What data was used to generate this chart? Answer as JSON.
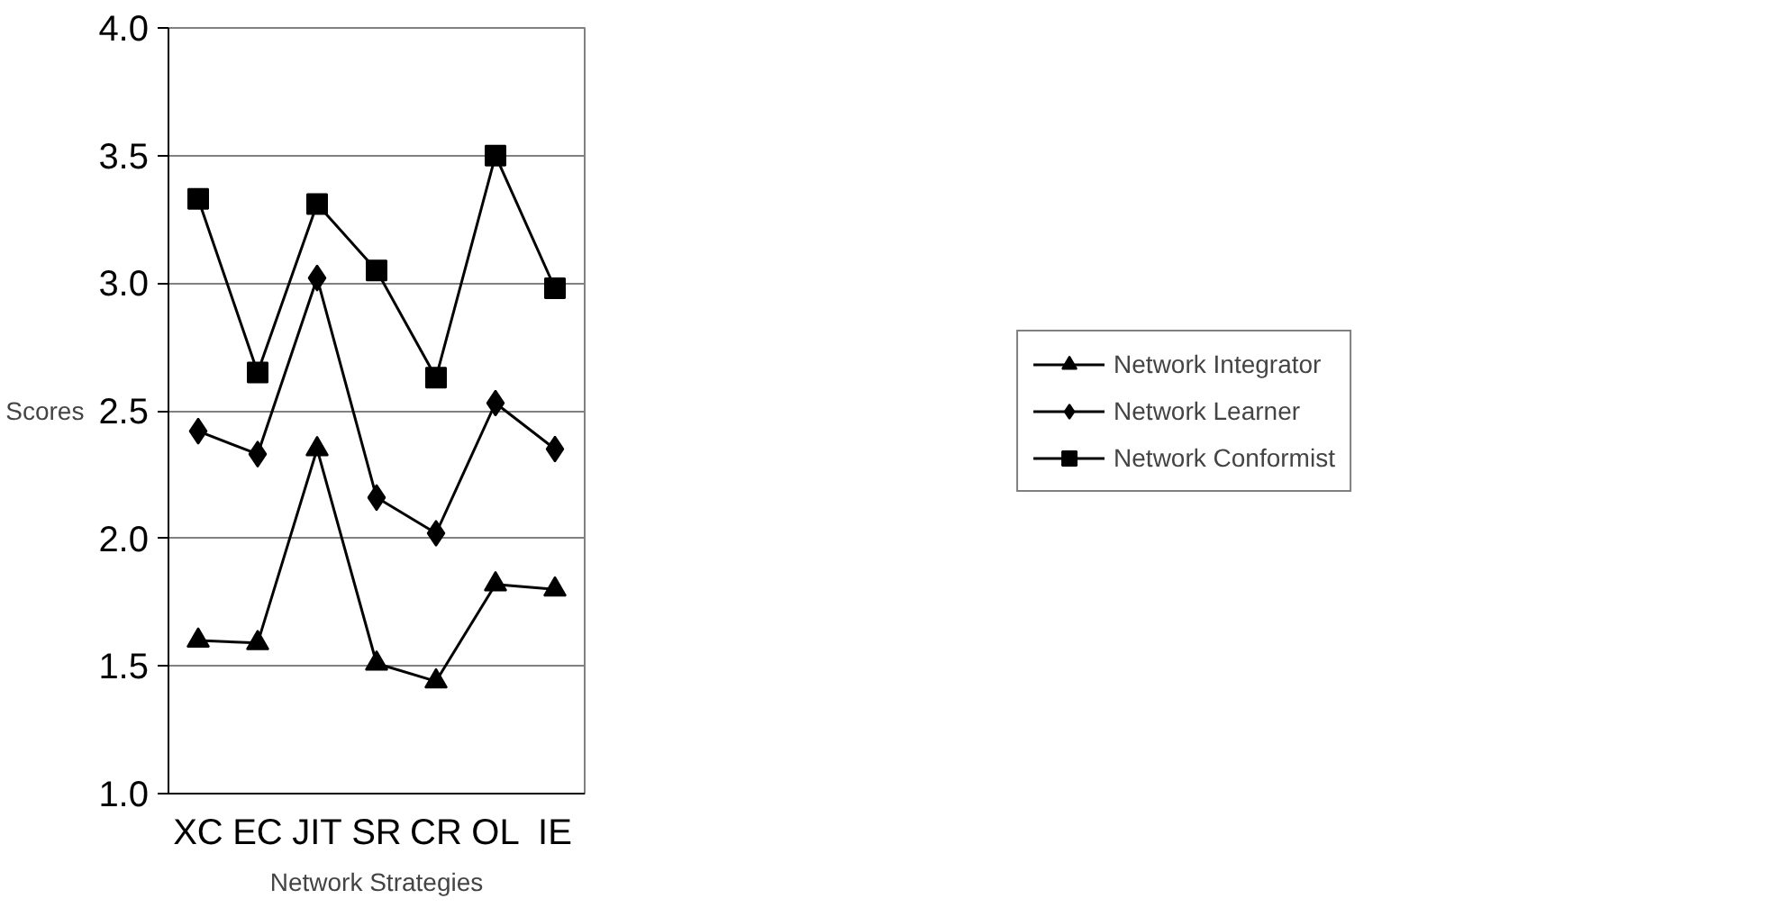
{
  "chart_data": {
    "type": "line",
    "xlabel": "Network Strategies",
    "ylabel": "Scores",
    "categories": [
      "XC",
      "EC",
      "JIT",
      "SR",
      "CR",
      "OL",
      "IE"
    ],
    "series": [
      {
        "name": "Network Integrator",
        "color": "#000000",
        "marker": "triangle",
        "values": [
          1.6,
          1.59,
          2.35,
          1.51,
          1.44,
          1.82,
          1.8
        ]
      },
      {
        "name": "Network Learner",
        "color": "#000000",
        "marker": "diamond",
        "values": [
          2.42,
          2.33,
          3.02,
          2.16,
          2.02,
          2.53,
          2.35
        ]
      },
      {
        "name": "Network Conformist",
        "color": "#000000",
        "marker": "square",
        "values": [
          3.33,
          2.65,
          3.31,
          3.05,
          2.63,
          3.5,
          2.98
        ]
      }
    ],
    "ylim": [
      1.0,
      4.0
    ],
    "yticks": [
      {
        "value": 1.0,
        "label": "1.0"
      },
      {
        "value": 1.5,
        "label": "1.5"
      },
      {
        "value": 2.0,
        "label": "2.0"
      },
      {
        "value": 2.5,
        "label": "2.5"
      },
      {
        "value": 3.0,
        "label": "3.0"
      },
      {
        "value": 3.5,
        "label": "3.5"
      },
      {
        "value": 4.0,
        "label": "4.0"
      }
    ],
    "grid": "y",
    "legend": "right",
    "line_style": "solid"
  }
}
